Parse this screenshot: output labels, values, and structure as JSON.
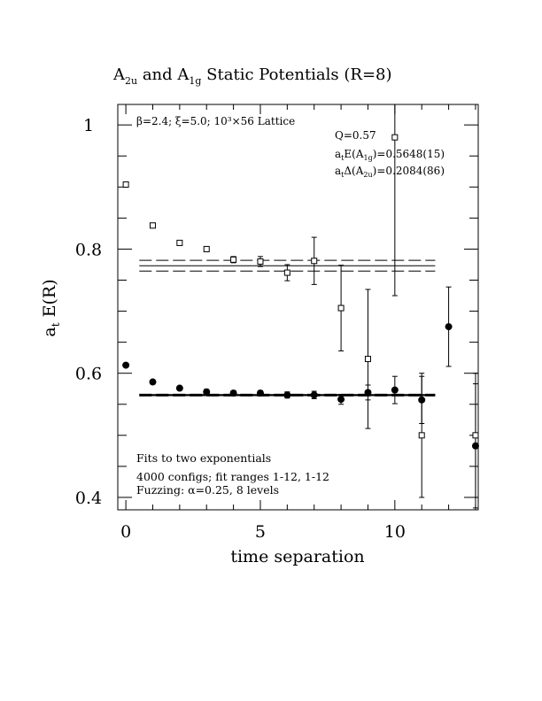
{
  "chart_data": {
    "type": "scatter",
    "title_parts": {
      "a": "A",
      "a_sub": "2u",
      "mid": " and A",
      "b_sub": "1g",
      "end": " Static Potentials (R=8)"
    },
    "xlabel": "time separation",
    "ylabel_main": "a",
    "ylabel_sub": "t",
    "ylabel_tail": " E(R)",
    "xlim": [
      -0.3,
      13.1
    ],
    "ylim": [
      0.38,
      1.033
    ],
    "xticks": [
      0,
      5,
      10
    ],
    "yticks": [
      0.4,
      0.6,
      0.8,
      1
    ],
    "ytick_labels": [
      "0.4",
      "0.6",
      "0.8",
      "1"
    ],
    "xtick_labels": [
      "0",
      "5",
      "10"
    ],
    "annotations": {
      "lattice": "β=2.4; ξ=5.0; 10³×56 Lattice",
      "q": "Q=0.57",
      "e_pre": "a",
      "e_sub1": "t",
      "e_mid": "E(A",
      "e_sub2": "1g",
      "e_tail": ")=0.5648(15)",
      "d_pre": "a",
      "d_sub1": "t",
      "d_mid": "Δ(A",
      "d_sub2": "2u",
      "d_tail": ")=0.2084(86)",
      "fits": "Fits to two exponentials",
      "configs": "4000 configs; fit ranges 1-12, 1-12",
      "fuzzing": "Fuzzing: α=0.25, 8 levels"
    },
    "series": [
      {
        "marker": "filled-circle",
        "points": [
          {
            "x": 0,
            "y": 0.613,
            "err": 0.003
          },
          {
            "x": 1,
            "y": 0.586,
            "err": 0.003
          },
          {
            "x": 2,
            "y": 0.576,
            "err": 0.003
          },
          {
            "x": 3,
            "y": 0.57,
            "err": 0.004
          },
          {
            "x": 4,
            "y": 0.568,
            "err": 0.004
          },
          {
            "x": 5,
            "y": 0.568,
            "err": 0.004
          },
          {
            "x": 6,
            "y": 0.565,
            "err": 0.005
          },
          {
            "x": 7,
            "y": 0.565,
            "err": 0.006
          },
          {
            "x": 8,
            "y": 0.558,
            "err": 0.008
          },
          {
            "x": 9,
            "y": 0.569,
            "err": 0.012
          },
          {
            "x": 10,
            "y": 0.573,
            "err": 0.022
          },
          {
            "x": 11,
            "y": 0.557,
            "err": 0.038
          },
          {
            "x": 12,
            "y": 0.675,
            "err": 0.064
          },
          {
            "x": 13,
            "y": 0.483,
            "err": 0.1
          }
        ]
      },
      {
        "marker": "open-square",
        "points": [
          {
            "x": 0,
            "y": 0.904,
            "err": 0.003
          },
          {
            "x": 1,
            "y": 0.838,
            "err": 0.004
          },
          {
            "x": 2,
            "y": 0.81,
            "err": 0.004
          },
          {
            "x": 3,
            "y": 0.8,
            "err": 0.004
          },
          {
            "x": 4,
            "y": 0.783,
            "err": 0.005
          },
          {
            "x": 5,
            "y": 0.78,
            "err": 0.008
          },
          {
            "x": 6,
            "y": 0.762,
            "err": 0.013
          },
          {
            "x": 7,
            "y": 0.781,
            "err": 0.038
          },
          {
            "x": 8,
            "y": 0.705,
            "err": 0.069
          },
          {
            "x": 9,
            "y": 0.623,
            "err": 0.112
          },
          {
            "x": 10,
            "y": 0.98,
            "err": 0.255
          },
          {
            "x": 11,
            "y": 0.5,
            "err": 0.1
          },
          {
            "x": 13,
            "y": 0.5,
            "err": 0.1
          }
        ]
      }
    ],
    "fit_lines": [
      {
        "y": 0.7732,
        "x_range": [
          0.5,
          11.5
        ],
        "style": "solid"
      },
      {
        "y": 0.7818,
        "x_range": [
          0.5,
          11.5
        ],
        "style": "dashed"
      },
      {
        "y": 0.7646,
        "x_range": [
          0.5,
          11.5
        ],
        "style": "dashed"
      },
      {
        "y": 0.5648,
        "x_range": [
          0.5,
          11.5
        ],
        "style": "solid-thick"
      },
      {
        "y": 0.5663,
        "x_range": [
          0.5,
          11.5
        ],
        "style": "dashed"
      },
      {
        "y": 0.5633,
        "x_range": [
          0.5,
          11.5
        ],
        "style": "dashed"
      }
    ]
  }
}
